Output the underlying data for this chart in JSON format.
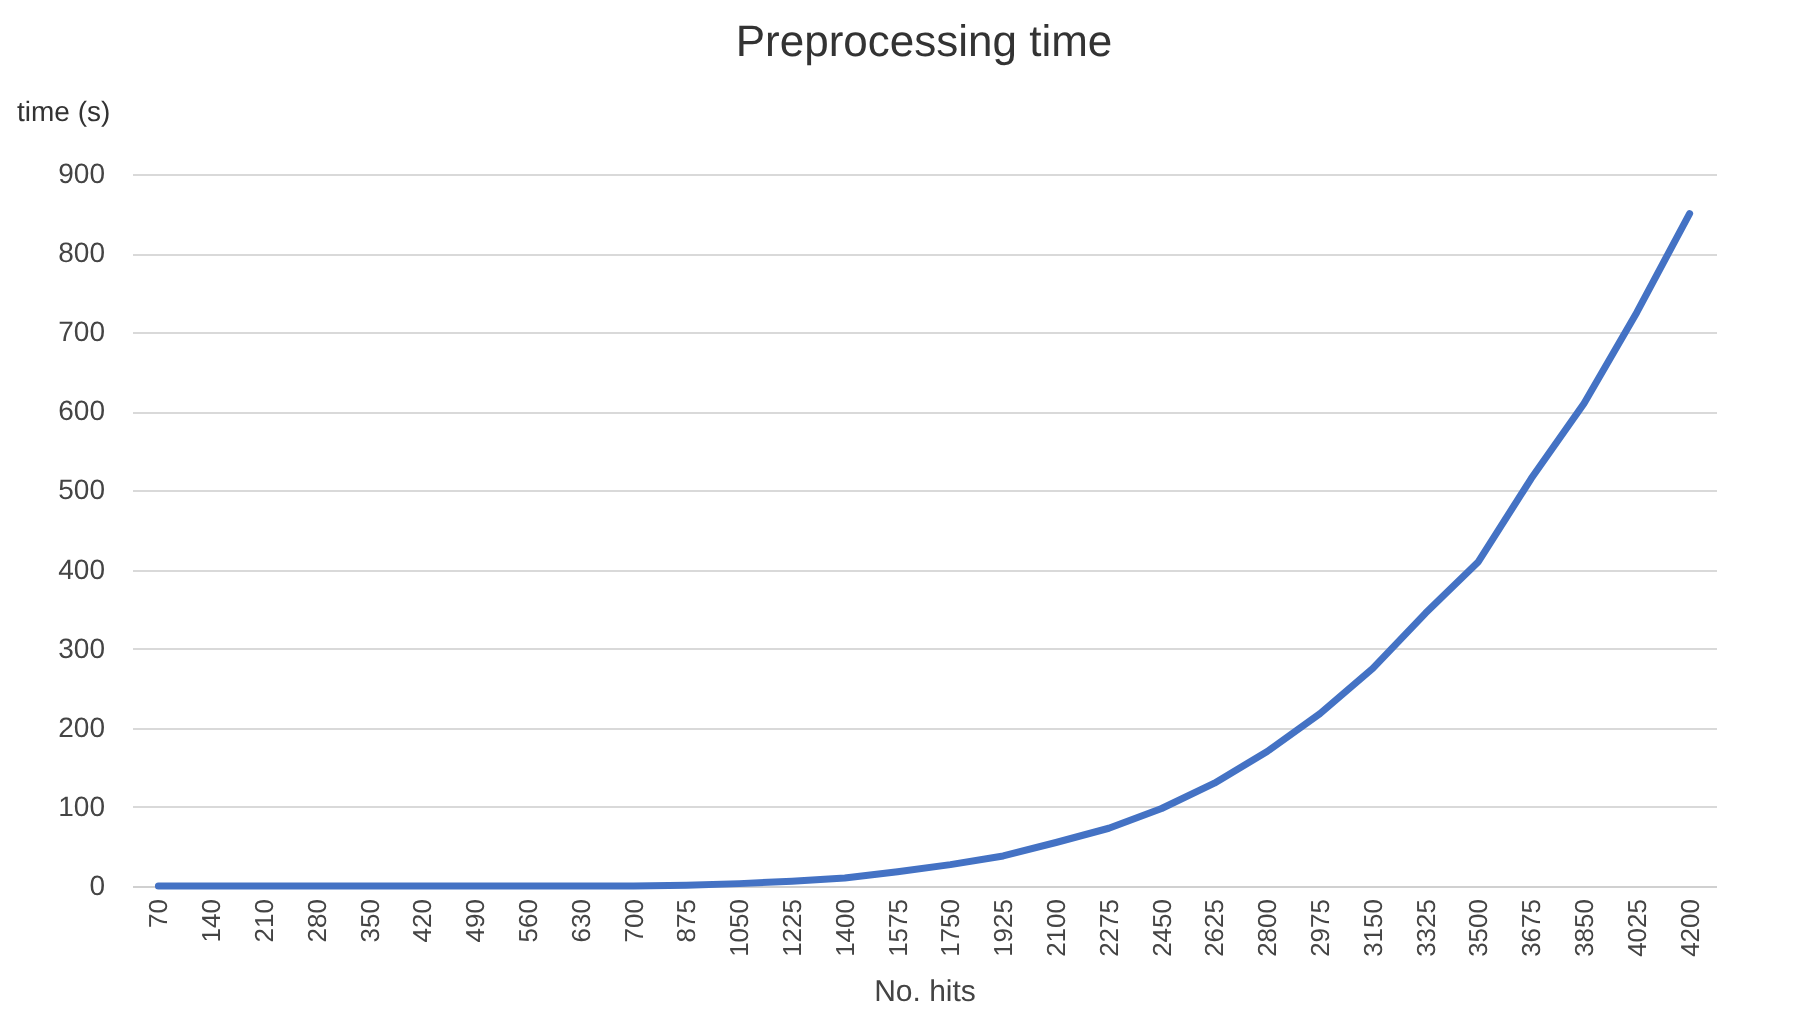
{
  "chart_data": {
    "type": "line",
    "title": "Preprocessing time",
    "xlabel": "No. hits",
    "ylabel": "time (s)",
    "categories": [
      "70",
      "140",
      "210",
      "280",
      "350",
      "420",
      "490",
      "560",
      "630",
      "700",
      "875",
      "1050",
      "1225",
      "1400",
      "1575",
      "1750",
      "1925",
      "2100",
      "2275",
      "2450",
      "2625",
      "2800",
      "2975",
      "3150",
      "3325",
      "3500",
      "3675",
      "3850",
      "4025",
      "4200"
    ],
    "series": [
      {
        "color": "#4472c4",
        "values": [
          0,
          0,
          0,
          0,
          0,
          0,
          0,
          0,
          0,
          0,
          1,
          3,
          6,
          10,
          18,
          27,
          38,
          55,
          73,
          98,
          130,
          170,
          218,
          275,
          345,
          410,
          515,
          610,
          725,
          850
        ]
      }
    ],
    "ylim": [
      0,
      900
    ],
    "yticks": [
      0,
      100,
      200,
      300,
      400,
      500,
      600,
      700,
      800,
      900
    ],
    "grid": "y",
    "legend": false,
    "marker": "none",
    "line_style": "solid"
  }
}
